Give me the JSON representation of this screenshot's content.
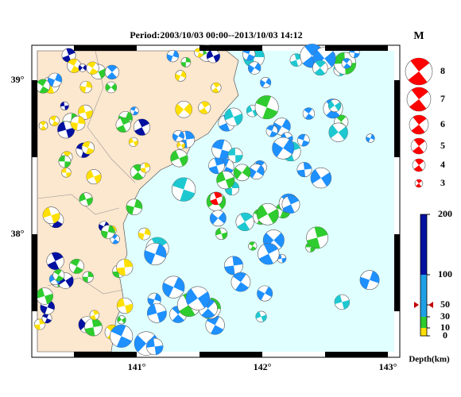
{
  "title": "Period:2003/10/03 00:00--2013/10/03 14:12",
  "axes": {
    "lat_labels": [
      "39°",
      "38°"
    ],
    "lon_labels": [
      "141°",
      "142°",
      "143°"
    ]
  },
  "magnitude_legend": {
    "title": "M",
    "labels": [
      "8",
      "7",
      "6",
      "5",
      "4",
      "3"
    ]
  },
  "depth_scale": {
    "title": "Depth(km)",
    "labels": [
      "200",
      "100",
      "50",
      "30",
      "10",
      "0"
    ]
  }
}
